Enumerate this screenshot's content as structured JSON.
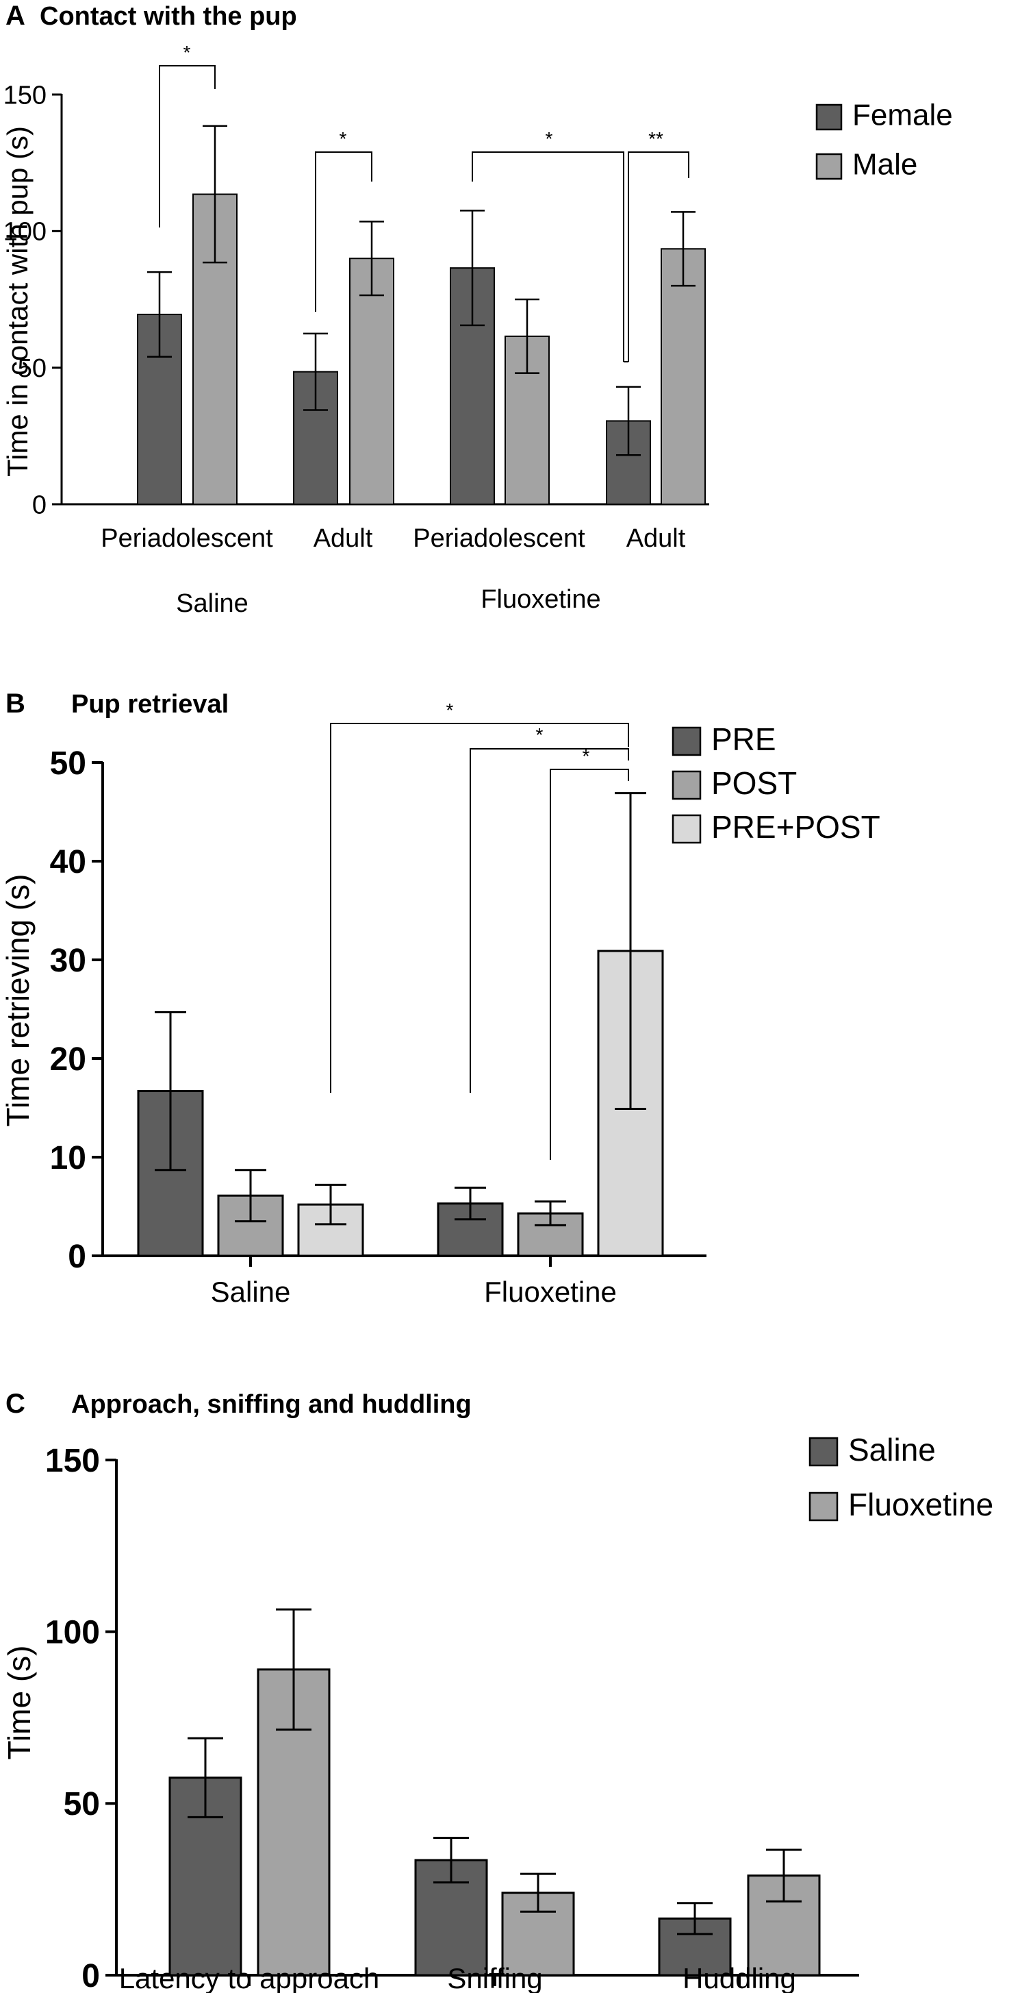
{
  "chart_data": [
    {
      "panel": "A",
      "type": "bar",
      "title": "Contact with the pup",
      "ylabel": "Time in contact with pup (s)",
      "ylim": [
        0,
        150
      ],
      "yticks": [
        0,
        50,
        100,
        150
      ],
      "categories": [
        "Periadolescent",
        "Adult",
        "Periadolescent",
        "Adult"
      ],
      "groups": [
        {
          "label": "Saline",
          "categories": [
            0,
            1
          ]
        },
        {
          "label": "Fluoxetine",
          "categories": [
            2,
            3
          ]
        }
      ],
      "series": [
        {
          "name": "Female",
          "color": "#5e5e5e",
          "values": [
            69.5,
            48.5,
            86.5,
            30.5
          ],
          "errors": [
            15.5,
            14.0,
            21.0,
            12.5
          ]
        },
        {
          "name": "Male",
          "color": "#a3a3a3",
          "values": [
            113.5,
            90.0,
            61.5,
            93.5
          ],
          "errors": [
            25.0,
            13.5,
            13.5,
            13.5
          ]
        }
      ],
      "significance": [
        "*",
        "*",
        "*",
        "**"
      ],
      "legend_position": "top-right",
      "grid": false
    },
    {
      "panel": "B",
      "type": "bar",
      "title": "Pup retrieval",
      "ylabel": "Time retrieving (s)",
      "ylim": [
        0,
        50
      ],
      "yticks": [
        0,
        10,
        20,
        30,
        40,
        50
      ],
      "categories": [
        "Saline",
        "Fluoxetine"
      ],
      "series": [
        {
          "name": "PRE",
          "color": "#5e5e5e",
          "values": [
            16.7,
            5.3
          ],
          "errors": [
            8.0,
            1.6
          ]
        },
        {
          "name": "POST",
          "color": "#a3a3a3",
          "values": [
            6.1,
            4.3
          ],
          "errors": [
            2.6,
            1.2
          ]
        },
        {
          "name": "PRE+POST",
          "color": "#d9d9d9",
          "values": [
            5.2,
            30.9
          ],
          "errors": [
            2.0,
            16.0
          ]
        }
      ],
      "significance": [
        "*",
        "*",
        "*"
      ],
      "legend_position": "top-right",
      "grid": false
    },
    {
      "panel": "C",
      "type": "bar",
      "title": "Approach, sniffing and huddling",
      "ylabel": "Time (s)",
      "ylim": [
        0,
        150
      ],
      "yticks": [
        0,
        50,
        100,
        150
      ],
      "categories": [
        "Latency to approach",
        "Sniffing",
        "Huddling"
      ],
      "series": [
        {
          "name": "Saline",
          "color": "#5e5e5e",
          "values": [
            57.5,
            33.5,
            16.5
          ],
          "errors": [
            11.5,
            6.5,
            4.5
          ]
        },
        {
          "name": "Fluoxetine",
          "color": "#a3a3a3",
          "values": [
            89.0,
            24.0,
            29.0
          ],
          "errors": [
            17.5,
            5.5,
            7.5
          ]
        }
      ],
      "legend_position": "top-right",
      "grid": false
    }
  ]
}
